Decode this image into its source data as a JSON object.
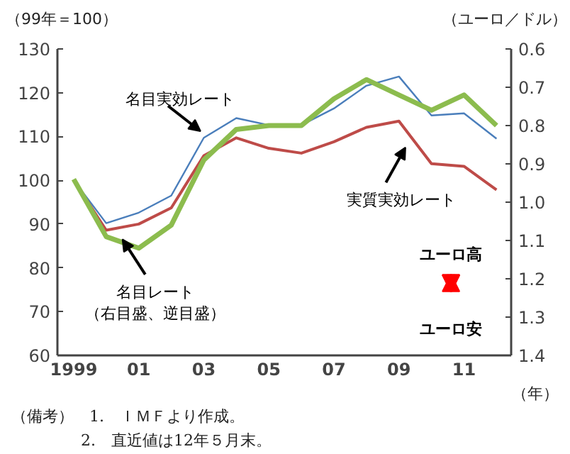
{
  "chart_data": {
    "type": "line",
    "ylabel": "（99年＝100）",
    "y2label": "（ユーロ／ドル）",
    "xlabel": "（年）",
    "x": [
      1999,
      2000,
      2001,
      2002,
      2003,
      2004,
      2005,
      2006,
      2007,
      2008,
      2009,
      2010,
      2011,
      2012
    ],
    "series": [
      {
        "name": "名目実効レート",
        "color": "#4a7ebb",
        "values": [
          100,
          90.2,
          92.6,
          96.5,
          109.7,
          114.2,
          112.6,
          112.6,
          116.4,
          121.6,
          123.7,
          114.8,
          115.3,
          109.5
        ]
      },
      {
        "name": "実質実効レート",
        "color": "#be4b48",
        "values": [
          100,
          88.6,
          90.0,
          93.7,
          105.6,
          109.7,
          107.3,
          106.2,
          108.8,
          112.1,
          113.5,
          103.8,
          103.2,
          97.8
        ]
      },
      {
        "name": "名目レート（右目盛、逆目盛）",
        "color": "#8cbc4e",
        "axis": "y2",
        "values": [
          0.94,
          1.09,
          1.12,
          1.06,
          0.89,
          0.81,
          0.8,
          0.8,
          0.73,
          0.68,
          0.72,
          0.76,
          0.72,
          0.8
        ]
      }
    ],
    "xlim": [
      1998.5,
      2012.45
    ],
    "xticks": [
      {
        "value": 1999,
        "label": "1999"
      },
      {
        "value": 2001,
        "label": "01"
      },
      {
        "value": 2003,
        "label": "03"
      },
      {
        "value": 2005,
        "label": "05"
      },
      {
        "value": 2007,
        "label": "07"
      },
      {
        "value": 2009,
        "label": "09"
      },
      {
        "value": 2011,
        "label": "11"
      }
    ],
    "ylim": [
      60,
      130
    ],
    "yticks": [
      60,
      70,
      80,
      90,
      100,
      110,
      120,
      130
    ],
    "y2lim": [
      1.4,
      0.6
    ],
    "y2ticks": [
      {
        "value": 0.6,
        "label": "0.6"
      },
      {
        "value": 0.7,
        "label": "0.7"
      },
      {
        "value": 0.8,
        "label": "0.8"
      },
      {
        "value": 0.9,
        "label": "0.9"
      },
      {
        "value": 1.0,
        "label": "1.0"
      },
      {
        "value": 1.1,
        "label": "1.1"
      },
      {
        "value": 1.2,
        "label": "1.2"
      },
      {
        "value": 1.3,
        "label": "1.3"
      },
      {
        "value": 1.4,
        "label": "1.4"
      }
    ],
    "annotations": [
      "ユーロ高",
      "ユーロ安",
      "（備考）　1.　ＩＭＦより作成。",
      "2.　直近値は12年５月末。"
    ],
    "grid": false,
    "marker": "none",
    "line_style": "solid"
  }
}
